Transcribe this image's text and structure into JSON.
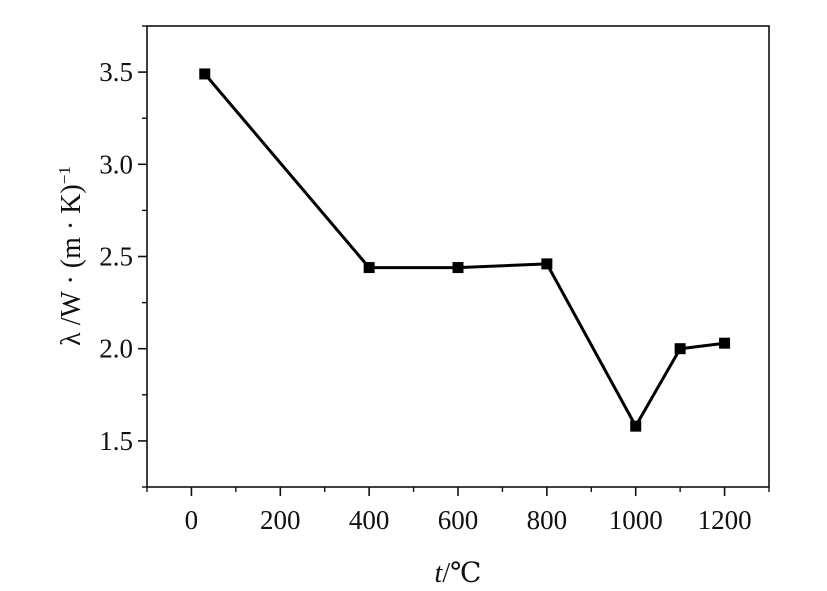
{
  "chart_data": {
    "type": "line",
    "title": "",
    "xlabel": "t/℃",
    "xlabel_parts": {
      "var": "t",
      "unit": "/℃"
    },
    "ylabel": "λ /W · (m · K)⁻¹",
    "ylabel_parts": {
      "main": "λ /W · (m · K)",
      "sup": "−1"
    },
    "xlim": [
      -100,
      1300
    ],
    "ylim": [
      1.25,
      3.75
    ],
    "x_ticks": [
      0,
      200,
      400,
      600,
      800,
      1000,
      1200
    ],
    "x_tick_labels": [
      "0",
      "200",
      "400",
      "600",
      "800",
      "1000",
      "1200"
    ],
    "y_ticks": [
      1.5,
      2.0,
      2.5,
      3.0,
      3.5
    ],
    "y_tick_labels": [
      "1.5",
      "2.0",
      "2.5",
      "3.0",
      "3.5"
    ],
    "grid": false,
    "legend": "none",
    "line_color": "#000000",
    "marker": "square",
    "series": [
      {
        "x": [
          30,
          400,
          600,
          800,
          1000,
          1100,
          1200
        ],
        "values": [
          3.49,
          2.44,
          2.44,
          2.46,
          1.58,
          2.0,
          2.03
        ]
      }
    ]
  }
}
